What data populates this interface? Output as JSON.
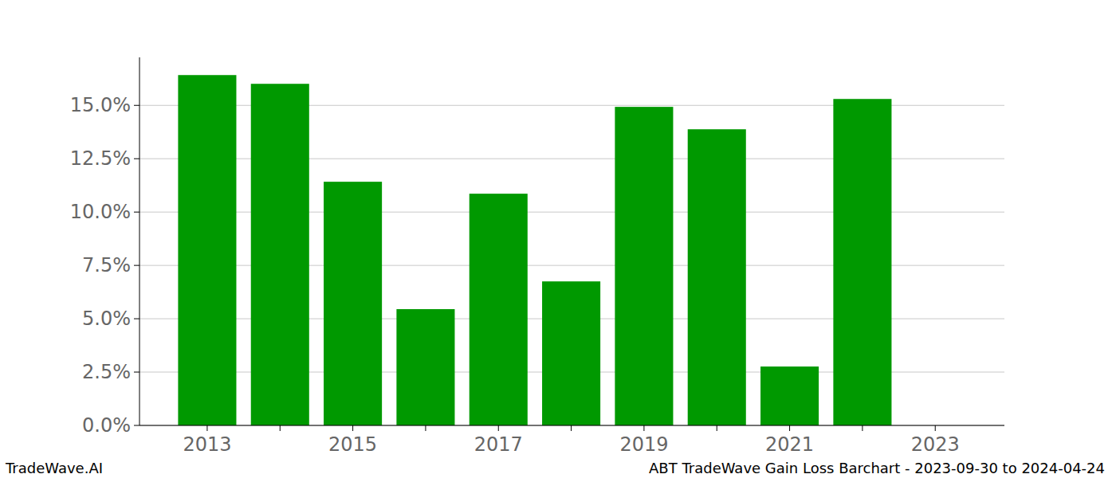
{
  "chart_data": {
    "type": "bar",
    "title": "ABT TradeWave Gain Loss Barchart - 2023-09-30 to 2024-04-24",
    "annotations": [
      "TradeWave.AI"
    ],
    "categories": [
      "2013",
      null,
      "2015",
      null,
      "2017",
      null,
      "2019",
      null,
      "2021",
      null,
      "2023"
    ],
    "values": [
      16.42,
      16.01,
      11.42,
      5.45,
      10.86,
      6.75,
      14.93,
      13.88,
      2.76,
      15.3,
      0
    ],
    "color": "#009900",
    "ylim": [
      0,
      17.25
    ],
    "yticks": [
      {
        "value": 0,
        "label": "0.0%"
      },
      {
        "value": 2.5,
        "label": "2.5%"
      },
      {
        "value": 5,
        "label": "5.0%"
      },
      {
        "value": 7.5,
        "label": "7.5%"
      },
      {
        "value": 10,
        "label": "10.0%"
      },
      {
        "value": 12.5,
        "label": "12.5%"
      },
      {
        "value": 15,
        "label": "15.0%"
      }
    ],
    "grid": true
  }
}
